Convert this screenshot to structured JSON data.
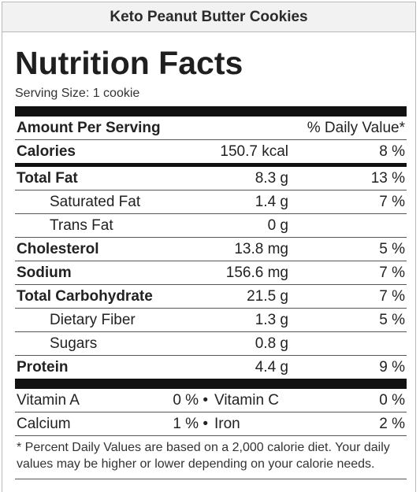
{
  "recipe_title": "Keto Peanut Butter Cookies",
  "label_title": "Nutrition Facts",
  "serving_size": "Serving Size: 1 cookie",
  "header": {
    "amount_per_serving": "Amount Per Serving",
    "daily_value": "% Daily Value*"
  },
  "calories": {
    "name": "Calories",
    "amount": "150.7 kcal",
    "dv": "8 %"
  },
  "nutrients": [
    {
      "name": "Total Fat",
      "amount": "8.3 g",
      "dv": "13 %"
    },
    {
      "name": "Saturated Fat",
      "amount": "1.4 g",
      "dv": "7 %"
    },
    {
      "name": "Trans Fat",
      "amount": "0 g",
      "dv": ""
    },
    {
      "name": "Cholesterol",
      "amount": "13.8 mg",
      "dv": "5 %"
    },
    {
      "name": "Sodium",
      "amount": "156.6 mg",
      "dv": "7 %"
    },
    {
      "name": "Total Carbohydrate",
      "amount": "21.5 g",
      "dv": "7 %"
    },
    {
      "name": "Dietary Fiber",
      "amount": "1.3 g",
      "dv": "5 %"
    },
    {
      "name": "Sugars",
      "amount": "0.8 g",
      "dv": ""
    },
    {
      "name": "Protein",
      "amount": "4.4 g",
      "dv": "9 %"
    }
  ],
  "vitamins": [
    {
      "left_name": "Vitamin A",
      "left_value": "0 % •",
      "right_name": "Vitamin C",
      "right_value": "0 %"
    },
    {
      "left_name": "Calcium",
      "left_value": "1 % •",
      "right_name": "Iron",
      "right_value": "2 %"
    }
  ],
  "footnote": "* Percent Daily Values are based on a 2,000 calorie diet. Your daily values may be higher or lower depending on your calorie needs."
}
